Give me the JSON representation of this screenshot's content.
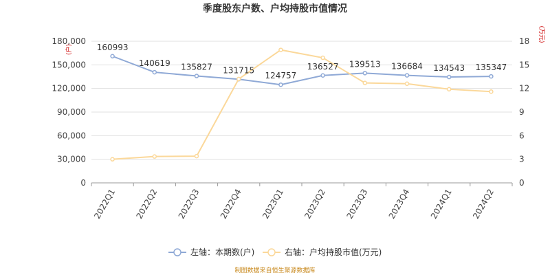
{
  "chart_data": {
    "type": "line",
    "title": "季度股东户数、户均持股市值情况",
    "categories": [
      "2022Q1",
      "2022Q2",
      "2022Q3",
      "2022Q4",
      "2023Q1",
      "2023Q2",
      "2023Q3",
      "2023Q4",
      "2024Q1",
      "2024Q2"
    ],
    "left_axis": {
      "unit_label": "(户)",
      "ylim": [
        0,
        180000
      ],
      "ticks": [
        "0",
        "30,000",
        "60,000",
        "90,000",
        "120,000",
        "150,000",
        "180,000"
      ],
      "tick_values": [
        0,
        30000,
        60000,
        90000,
        120000,
        150000,
        180000
      ]
    },
    "right_axis": {
      "unit_label": "(万元)",
      "ylim": [
        0,
        18
      ],
      "ticks": [
        "0",
        "3",
        "6",
        "9",
        "12",
        "15",
        "18"
      ],
      "tick_values": [
        0,
        3,
        6,
        9,
        12,
        15,
        18
      ]
    },
    "series": [
      {
        "name": "左轴：本期数(户)",
        "axis": "left",
        "color": "#8fa9d6",
        "values": [
          160993,
          140619,
          135827,
          131715,
          124757,
          136527,
          139513,
          136684,
          134543,
          135347
        ],
        "labels": [
          "160993",
          "140619",
          "135827",
          "131715",
          "124757",
          "136527",
          "139513",
          "136684",
          "134543",
          "135347"
        ]
      },
      {
        "name": "右轴：户均持股市值(万元)",
        "axis": "right",
        "color": "#fbd89a",
        "values": [
          3.0,
          3.35,
          3.4,
          13.2,
          16.9,
          15.9,
          12.7,
          12.6,
          11.9,
          11.6
        ]
      }
    ],
    "grid": true,
    "legend_position": "bottom"
  },
  "source": "制图数据来自恒生聚源数据库"
}
